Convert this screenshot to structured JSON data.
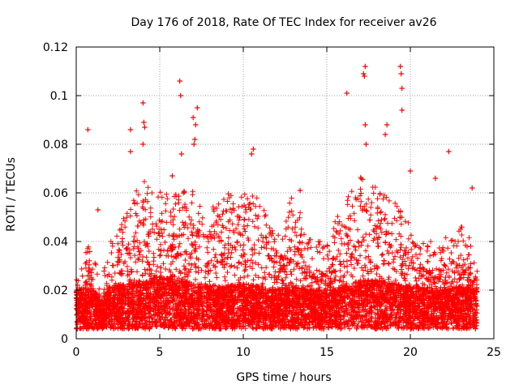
{
  "chart_data": {
    "type": "scatter",
    "title": "Day 176 of 2018, Rate Of TEC Index for receiver av26",
    "xlabel": "GPS time / hours",
    "ylabel": "ROTI / TECUs",
    "xlim": [
      0,
      25
    ],
    "ylim": [
      0,
      0.12
    ],
    "xticks": [
      0,
      5,
      10,
      15,
      20,
      25
    ],
    "yticks": [
      0,
      0.02,
      0.04,
      0.06,
      0.08,
      0.1,
      0.12
    ],
    "xtick_labels": [
      "0",
      "5",
      "10",
      "15",
      "20",
      "25"
    ],
    "ytick_labels": [
      "0",
      "0.02",
      "0.04",
      "0.06",
      "0.08",
      "0.1",
      "0.12"
    ],
    "grid": true,
    "marker": "+",
    "series_color": "#ff0000",
    "data_range_hours": [
      0,
      24
    ],
    "notable_points": [
      {
        "x": 0.7,
        "y": 0.086
      },
      {
        "x": 1.3,
        "y": 0.053
      },
      {
        "x": 3.25,
        "y": 0.086
      },
      {
        "x": 3.25,
        "y": 0.077
      },
      {
        "x": 4.0,
        "y": 0.097
      },
      {
        "x": 4.05,
        "y": 0.089
      },
      {
        "x": 4.1,
        "y": 0.087
      },
      {
        "x": 4.0,
        "y": 0.08
      },
      {
        "x": 6.2,
        "y": 0.106
      },
      {
        "x": 6.25,
        "y": 0.1
      },
      {
        "x": 6.3,
        "y": 0.076
      },
      {
        "x": 5.75,
        "y": 0.067
      },
      {
        "x": 7.0,
        "y": 0.091
      },
      {
        "x": 7.25,
        "y": 0.095
      },
      {
        "x": 7.15,
        "y": 0.088
      },
      {
        "x": 7.1,
        "y": 0.082
      },
      {
        "x": 7.05,
        "y": 0.08
      },
      {
        "x": 10.6,
        "y": 0.078
      },
      {
        "x": 10.5,
        "y": 0.076
      },
      {
        "x": 13.4,
        "y": 0.061
      },
      {
        "x": 16.2,
        "y": 0.101
      },
      {
        "x": 17.3,
        "y": 0.112
      },
      {
        "x": 17.2,
        "y": 0.109
      },
      {
        "x": 17.25,
        "y": 0.108
      },
      {
        "x": 17.3,
        "y": 0.088
      },
      {
        "x": 17.35,
        "y": 0.08
      },
      {
        "x": 18.6,
        "y": 0.088
      },
      {
        "x": 18.5,
        "y": 0.084
      },
      {
        "x": 19.4,
        "y": 0.112
      },
      {
        "x": 19.45,
        "y": 0.109
      },
      {
        "x": 19.5,
        "y": 0.103
      },
      {
        "x": 19.5,
        "y": 0.094
      },
      {
        "x": 20.0,
        "y": 0.069
      },
      {
        "x": 21.5,
        "y": 0.066
      },
      {
        "x": 22.3,
        "y": 0.077
      },
      {
        "x": 23.7,
        "y": 0.062
      }
    ],
    "density_profile_hours": [
      {
        "x": 0.0,
        "base": 0.012,
        "upper": 0.02
      },
      {
        "x": 0.5,
        "base": 0.011,
        "upper": 0.022
      },
      {
        "x": 0.8,
        "base": 0.013,
        "upper": 0.032
      },
      {
        "x": 1.2,
        "base": 0.011,
        "upper": 0.018
      },
      {
        "x": 1.6,
        "base": 0.01,
        "upper": 0.014
      },
      {
        "x": 2.0,
        "base": 0.013,
        "upper": 0.028
      },
      {
        "x": 3.0,
        "base": 0.014,
        "upper": 0.04
      },
      {
        "x": 4.0,
        "base": 0.015,
        "upper": 0.055
      },
      {
        "x": 5.0,
        "base": 0.016,
        "upper": 0.05
      },
      {
        "x": 6.0,
        "base": 0.016,
        "upper": 0.048
      },
      {
        "x": 7.0,
        "base": 0.014,
        "upper": 0.05
      },
      {
        "x": 8.0,
        "base": 0.013,
        "upper": 0.042
      },
      {
        "x": 9.0,
        "base": 0.013,
        "upper": 0.048
      },
      {
        "x": 10.0,
        "base": 0.014,
        "upper": 0.05
      },
      {
        "x": 11.0,
        "base": 0.013,
        "upper": 0.045
      },
      {
        "x": 12.0,
        "base": 0.012,
        "upper": 0.03
      },
      {
        "x": 13.0,
        "base": 0.013,
        "upper": 0.048
      },
      {
        "x": 14.0,
        "base": 0.012,
        "upper": 0.03
      },
      {
        "x": 15.0,
        "base": 0.012,
        "upper": 0.028
      },
      {
        "x": 16.0,
        "base": 0.013,
        "upper": 0.045
      },
      {
        "x": 17.0,
        "base": 0.015,
        "upper": 0.055
      },
      {
        "x": 18.0,
        "base": 0.015,
        "upper": 0.05
      },
      {
        "x": 19.0,
        "base": 0.014,
        "upper": 0.045
      },
      {
        "x": 20.0,
        "base": 0.013,
        "upper": 0.035
      },
      {
        "x": 21.0,
        "base": 0.012,
        "upper": 0.028
      },
      {
        "x": 22.0,
        "base": 0.012,
        "upper": 0.03
      },
      {
        "x": 23.0,
        "base": 0.013,
        "upper": 0.035
      },
      {
        "x": 24.0,
        "base": 0.012,
        "upper": 0.025
      }
    ]
  }
}
